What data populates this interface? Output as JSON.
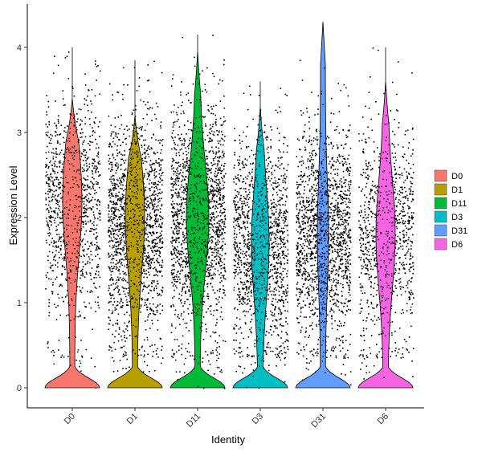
{
  "chart_data": {
    "type": "violin",
    "xlabel": "Identity",
    "ylabel": "Expression Level",
    "ylim": [
      -0.25,
      4.4
    ],
    "yticks": [
      0,
      1,
      2,
      3,
      4
    ],
    "categories": [
      "D0",
      "D1",
      "D11",
      "D3",
      "D31",
      "D6"
    ],
    "series": [
      {
        "name": "D0",
        "color": "#F8766D",
        "max": 4.0,
        "violin_peak": 3.4,
        "upper_body_center": 2.2,
        "points_upper_mean": 2.2,
        "cells": 1100
      },
      {
        "name": "D1",
        "color": "#B79F00",
        "max": 3.85,
        "violin_peak": 3.2,
        "upper_body_center": 2.0,
        "points_upper_mean": 1.9,
        "cells": 1700
      },
      {
        "name": "D11",
        "color": "#00BA38",
        "max": 4.15,
        "violin_peak": 3.95,
        "upper_body_center": 2.0,
        "points_upper_mean": 2.0,
        "cells": 1700
      },
      {
        "name": "D3",
        "color": "#00BFC4",
        "max": 3.6,
        "violin_peak": 3.3,
        "upper_body_center": 1.7,
        "points_upper_mean": 1.7,
        "cells": 1500
      },
      {
        "name": "D31",
        "color": "#619CFF",
        "max": 4.3,
        "violin_peak": 4.3,
        "upper_body_center": 1.8,
        "points_upper_mean": 1.8,
        "cells": 1700
      },
      {
        "name": "D6",
        "color": "#F564E3",
        "max": 4.0,
        "violin_peak": 3.6,
        "upper_body_center": 1.8,
        "points_upper_mean": 1.8,
        "cells": 1000
      }
    ],
    "legend_position": "right",
    "grid": false,
    "jitter_points": true,
    "x_tick_rotation_deg": 45
  }
}
